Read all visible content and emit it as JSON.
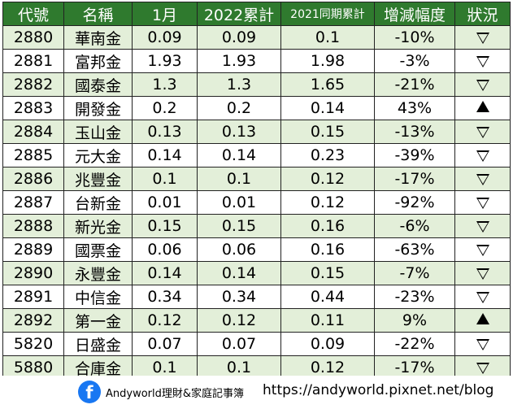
{
  "table": {
    "headers": [
      "代號",
      "名稱",
      "1月",
      "2022累計",
      "2021同期累計",
      "增減幅度",
      "狀況"
    ],
    "rows": [
      {
        "code": "2880",
        "name": "華南金",
        "jan": "0.09",
        "ytd2022": "0.09",
        "ytd2021": "0.1",
        "change": "-10%",
        "status": "down"
      },
      {
        "code": "2881",
        "name": "富邦金",
        "jan": "1.93",
        "ytd2022": "1.93",
        "ytd2021": "1.98",
        "change": "-3%",
        "status": "down"
      },
      {
        "code": "2882",
        "name": "國泰金",
        "jan": "1.3",
        "ytd2022": "1.3",
        "ytd2021": "1.65",
        "change": "-21%",
        "status": "down"
      },
      {
        "code": "2883",
        "name": "開發金",
        "jan": "0.2",
        "ytd2022": "0.2",
        "ytd2021": "0.14",
        "change": "43%",
        "status": "up"
      },
      {
        "code": "2884",
        "name": "玉山金",
        "jan": "0.13",
        "ytd2022": "0.13",
        "ytd2021": "0.15",
        "change": "-13%",
        "status": "down"
      },
      {
        "code": "2885",
        "name": "元大金",
        "jan": "0.14",
        "ytd2022": "0.14",
        "ytd2021": "0.23",
        "change": "-39%",
        "status": "down"
      },
      {
        "code": "2886",
        "name": "兆豐金",
        "jan": "0.1",
        "ytd2022": "0.1",
        "ytd2021": "0.12",
        "change": "-17%",
        "status": "down"
      },
      {
        "code": "2887",
        "name": "台新金",
        "jan": "0.01",
        "ytd2022": "0.01",
        "ytd2021": "0.12",
        "change": "-92%",
        "status": "down"
      },
      {
        "code": "2888",
        "name": "新光金",
        "jan": "0.15",
        "ytd2022": "0.15",
        "ytd2021": "0.16",
        "change": "-6%",
        "status": "down"
      },
      {
        "code": "2889",
        "name": "國票金",
        "jan": "0.06",
        "ytd2022": "0.06",
        "ytd2021": "0.16",
        "change": "-63%",
        "status": "down"
      },
      {
        "code": "2890",
        "name": "永豐金",
        "jan": "0.14",
        "ytd2022": "0.14",
        "ytd2021": "0.15",
        "change": "-7%",
        "status": "down"
      },
      {
        "code": "2891",
        "name": "中信金",
        "jan": "0.34",
        "ytd2022": "0.34",
        "ytd2021": "0.44",
        "change": "-23%",
        "status": "down"
      },
      {
        "code": "2892",
        "name": "第一金",
        "jan": "0.12",
        "ytd2022": "0.12",
        "ytd2021": "0.11",
        "change": "9%",
        "status": "up"
      },
      {
        "code": "5820",
        "name": "日盛金",
        "jan": "0.07",
        "ytd2022": "0.07",
        "ytd2021": "0.09",
        "change": "-22%",
        "status": "down"
      },
      {
        "code": "5880",
        "name": "合庫金",
        "jan": "0.1",
        "ytd2022": "0.1",
        "ytd2021": "0.12",
        "change": "-17%",
        "status": "down"
      }
    ]
  },
  "footer": {
    "fb_glyph": "f",
    "brand": "Andyworld理財&家庭記事簿",
    "url": "https://andyworld.pixnet.net/blog"
  },
  "colors": {
    "header_bg": "#2f7a2e",
    "row_shade": "#e3efd9",
    "facebook": "#1877f2"
  }
}
